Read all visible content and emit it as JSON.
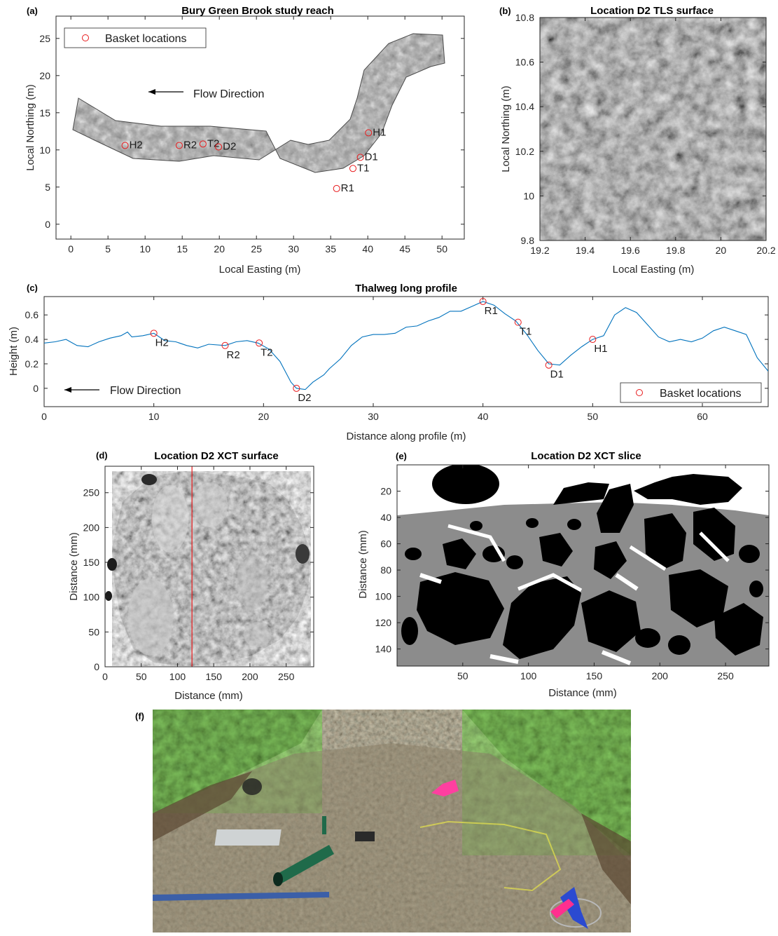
{
  "panels": {
    "a": {
      "label": "(a)",
      "title": "Bury Green Brook study reach",
      "xlabel": "Local Easting (m)",
      "ylabel": "Local Northing (m)",
      "legend": "Basket locations",
      "annotation": "Flow Direction"
    },
    "b": {
      "label": "(b)",
      "title": "Location D2 TLS surface",
      "xlabel": "Local Easting (m)",
      "ylabel": "Local Northing (m)"
    },
    "c": {
      "label": "(c)",
      "title": "Thalweg long profile",
      "xlabel": "Distance along profile (m)",
      "ylabel": "Height (m)",
      "legend": "Basket locations",
      "annotation": "Flow Direction"
    },
    "d": {
      "label": "(d)",
      "title": "Location D2 XCT surface",
      "xlabel": "Distance (mm)",
      "ylabel": "Distance (mm)"
    },
    "e": {
      "label": "(e)",
      "title": "Location D2 XCT slice",
      "xlabel": "Distance (mm)",
      "ylabel": "Distance (mm)"
    },
    "f": {
      "label": "(f)"
    }
  },
  "colors": {
    "line": "#0072bd",
    "marker": "#e8191b",
    "black": "#000000",
    "gray": "#8c8c8c"
  },
  "chart_data": [
    {
      "type": "scatter",
      "panel": "a",
      "x_ticks": [
        "0",
        "5",
        "10",
        "15",
        "20",
        "25",
        "30",
        "35",
        "40",
        "45",
        "50"
      ],
      "y_ticks": [
        "0",
        "5",
        "10",
        "15",
        "20",
        "25"
      ],
      "xlim": [
        -2,
        53
      ],
      "ylim": [
        -2,
        28
      ],
      "points": [
        {
          "label": "H2",
          "x": 7.3,
          "y": 10.6
        },
        {
          "label": "R2",
          "x": 14.6,
          "y": 10.6
        },
        {
          "label": "T2",
          "x": 17.8,
          "y": 10.8
        },
        {
          "label": "D2",
          "x": 19.9,
          "y": 10.4
        },
        {
          "label": "H1",
          "x": 40.1,
          "y": 12.3
        },
        {
          "label": "D1",
          "x": 39.0,
          "y": 9.0
        },
        {
          "label": "T1",
          "x": 38.0,
          "y": 7.5
        },
        {
          "label": "R1",
          "x": 35.8,
          "y": 4.8
        }
      ]
    },
    {
      "type": "heatmap",
      "panel": "b",
      "x_ticks": [
        "19.2",
        "19.4",
        "19.6",
        "19.8",
        "20",
        "20.2"
      ],
      "y_ticks": [
        "9.8",
        "10",
        "10.2",
        "10.4",
        "10.6",
        "10.8"
      ],
      "xlim": [
        19.2,
        20.2
      ],
      "ylim": [
        9.8,
        10.8
      ]
    },
    {
      "type": "line",
      "panel": "c",
      "x_ticks": [
        "0",
        "10",
        "20",
        "30",
        "40",
        "50",
        "60"
      ],
      "y_ticks": [
        "0",
        "0.2",
        "0.4",
        "0.6"
      ],
      "xlim": [
        0,
        66
      ],
      "ylim": [
        -0.15,
        0.75
      ],
      "profile": [
        [
          0,
          0.37
        ],
        [
          1,
          0.38
        ],
        [
          2,
          0.4
        ],
        [
          3,
          0.35
        ],
        [
          4,
          0.34
        ],
        [
          5,
          0.38
        ],
        [
          6,
          0.41
        ],
        [
          7,
          0.43
        ],
        [
          7.6,
          0.46
        ],
        [
          8,
          0.42
        ],
        [
          9,
          0.43
        ],
        [
          10,
          0.45
        ],
        [
          11,
          0.39
        ],
        [
          12,
          0.38
        ],
        [
          13,
          0.35
        ],
        [
          14,
          0.33
        ],
        [
          15,
          0.36
        ],
        [
          16.5,
          0.35
        ],
        [
          17.5,
          0.38
        ],
        [
          18.5,
          0.39
        ],
        [
          19.5,
          0.37
        ],
        [
          20.5,
          0.32
        ],
        [
          21.5,
          0.22
        ],
        [
          22.5,
          0.05
        ],
        [
          23,
          0.0
        ],
        [
          23.8,
          -0.01
        ],
        [
          24.5,
          0.05
        ],
        [
          25.5,
          0.11
        ],
        [
          26,
          0.16
        ],
        [
          27,
          0.24
        ],
        [
          28,
          0.35
        ],
        [
          29,
          0.42
        ],
        [
          30,
          0.44
        ],
        [
          31,
          0.44
        ],
        [
          32,
          0.45
        ],
        [
          33,
          0.5
        ],
        [
          34,
          0.51
        ],
        [
          35,
          0.55
        ],
        [
          36,
          0.58
        ],
        [
          37,
          0.63
        ],
        [
          38,
          0.63
        ],
        [
          39,
          0.67
        ],
        [
          40,
          0.71
        ],
        [
          41,
          0.68
        ],
        [
          42,
          0.61
        ],
        [
          43,
          0.55
        ],
        [
          44,
          0.44
        ],
        [
          45,
          0.31
        ],
        [
          46,
          0.2
        ],
        [
          47,
          0.19
        ],
        [
          48,
          0.27
        ],
        [
          49,
          0.34
        ],
        [
          50,
          0.4
        ],
        [
          51,
          0.43
        ],
        [
          52,
          0.6
        ],
        [
          53,
          0.66
        ],
        [
          54,
          0.62
        ],
        [
          55,
          0.52
        ],
        [
          56,
          0.42
        ],
        [
          57,
          0.38
        ],
        [
          58,
          0.4
        ],
        [
          59,
          0.38
        ],
        [
          60,
          0.41
        ],
        [
          61,
          0.47
        ],
        [
          62,
          0.5
        ],
        [
          63,
          0.47
        ],
        [
          64,
          0.44
        ],
        [
          65,
          0.25
        ],
        [
          66,
          0.14
        ]
      ],
      "points": [
        {
          "label": "H2",
          "x": 10.0,
          "y": 0.45
        },
        {
          "label": "R2",
          "x": 16.5,
          "y": 0.35
        },
        {
          "label": "T2",
          "x": 19.6,
          "y": 0.37
        },
        {
          "label": "D2",
          "x": 23.0,
          "y": 0.0
        },
        {
          "label": "R1",
          "x": 40.0,
          "y": 0.71
        },
        {
          "label": "T1",
          "x": 43.2,
          "y": 0.54
        },
        {
          "label": "D1",
          "x": 46.0,
          "y": 0.19
        },
        {
          "label": "H1",
          "x": 50.0,
          "y": 0.4
        }
      ]
    },
    {
      "type": "scatter",
      "panel": "d",
      "x_ticks": [
        "0",
        "50",
        "100",
        "150",
        "200",
        "250"
      ],
      "y_ticks": [
        "0",
        "50",
        "100",
        "150",
        "200",
        "250"
      ],
      "xlim": [
        0,
        288
      ],
      "ylim": [
        0,
        288
      ],
      "section_line_x": 120
    },
    {
      "type": "heatmap",
      "panel": "e",
      "x_ticks": [
        "50",
        "100",
        "150",
        "200",
        "250"
      ],
      "y_ticks": [
        "20",
        "40",
        "60",
        "80",
        "100",
        "120",
        "140"
      ],
      "xlim": [
        0,
        283
      ],
      "ylim": [
        0,
        153
      ]
    }
  ]
}
